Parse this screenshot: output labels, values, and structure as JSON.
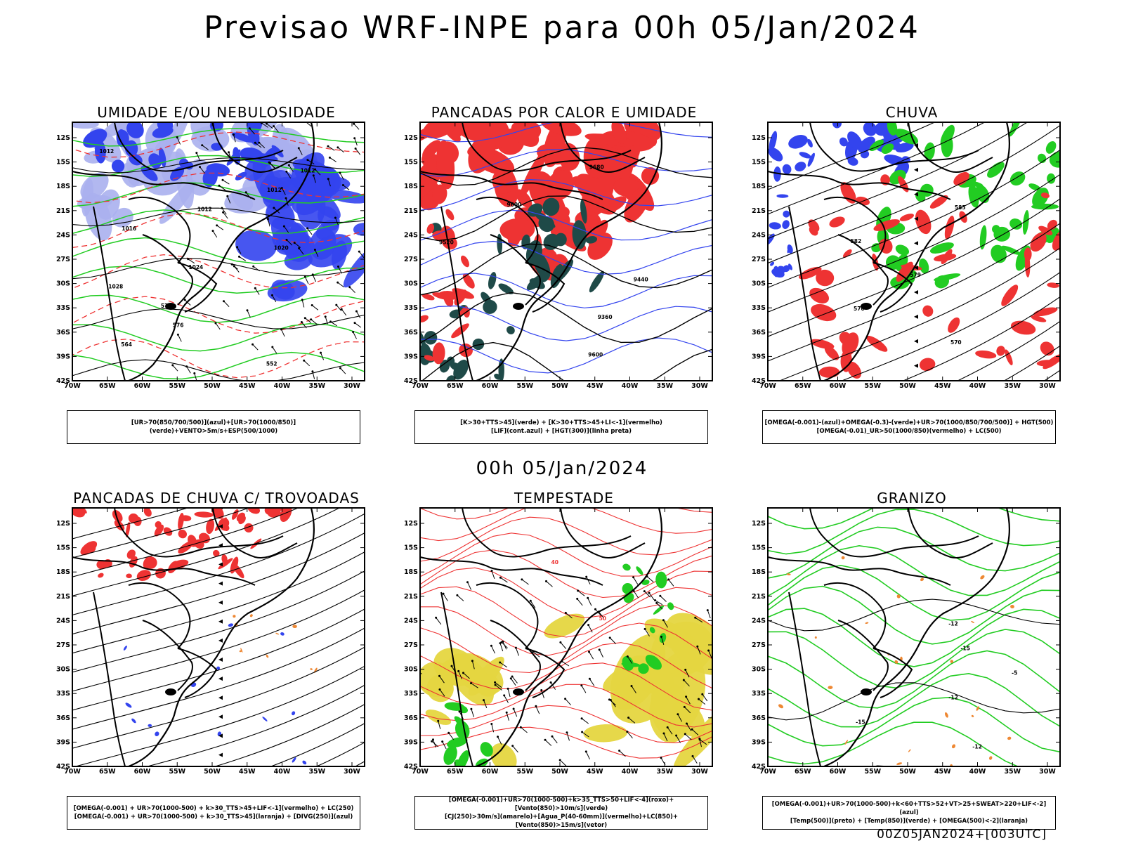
{
  "header": {
    "title": "Previsao WRF-INPE  para 00h 05/Jan/2024"
  },
  "mid_time": "00h 05/Jan/2024",
  "footer_stamp": "00Z05JAN2024+[003UTC]",
  "axes": {
    "lat_labels": [
      "12S",
      "15S",
      "18S",
      "21S",
      "24S",
      "27S",
      "30S",
      "33S",
      "36S",
      "39S",
      "42S"
    ],
    "lon_labels": [
      "70W",
      "65W",
      "60W",
      "55W",
      "50W",
      "45W",
      "40W",
      "35W",
      "30W"
    ]
  },
  "colors": {
    "blue": "#3344ee",
    "light_blue": "#aab0ee",
    "green": "#22cc22",
    "red": "#ee3333",
    "dark_teal": "#1f4a48",
    "yellow": "#e5d640",
    "orange": "#ee8833"
  },
  "panels": [
    {
      "title": "UMIDADE E/OU NEBULOSIDADE",
      "legend": [
        "[UR>70(850/700/500)](azul)+[UR>70(1000/850)](verde)+VENTO>5m/s+ESP(500/1000)"
      ],
      "labels": [
        "1012",
        "1012",
        "1012",
        "1012",
        "1016",
        "1020",
        "1024",
        "1028",
        "576",
        "576",
        "564",
        "552"
      ]
    },
    {
      "title": "PANCADAS POR CALOR E UMIDADE",
      "legend": [
        "[K>30+TTS>45](verde)  +  [K>30+TTS>45+LI<-1](vermelho)",
        "[LIF](cont.azul)  +  [HGT(300)](linha preta)"
      ],
      "labels": [
        "9680",
        "9600",
        "9520",
        "9440",
        "9360",
        "9600"
      ]
    },
    {
      "title": "CHUVA",
      "legend": [
        "[OMEGA(-0.001)-(azul)+OMEGA(-0.3)-(verde)+UR>70(1000/850/700/500)]  +  HGT(500)",
        "[OMEGA(-0.01)_UR>50(1000/850)(vermelho)  +  LC(500)"
      ],
      "labels": [
        "585",
        "582",
        "579",
        "576",
        "570"
      ]
    },
    {
      "title": "PANCADAS DE CHUVA C/ TROVOADAS",
      "legend": [
        "[OMEGA(-0.001)  +  UR>70(1000-500)  +  k>30_TTS>45+LIF<-1](vermelho)  +  LC(250)",
        "[OMEGA(-0.001)  +  UR>70(1000-500)  +  k>30_TTS>45](laranja)  +  [DIVG(250)](azul)"
      ],
      "labels": []
    },
    {
      "title": "TEMPESTADE",
      "legend": [
        "[OMEGA(-0.001)+UR>70(1000-500)+k>35_TTS>50+LIF<-4](roxo)+[Vento(850)>10m/s](verde)",
        "[CJ(250)>30m/s](amarelo)+[Agua_P(40-60mm)](vermelho)+LC(850)+[Vento(850)>15m/s](vetor)"
      ],
      "labels": [
        "40",
        "50"
      ]
    },
    {
      "title": "GRANIZO",
      "legend": [
        "[OMEGA(-0.001)+UR>70(1000-500)+k<60+TTS>52+VT>25+SWEAT>220+LIF<-2](azul)",
        "[Temp(500)](preto)  +  [Temp(850)](verde)  +  [OMEGA(500)<-2](laranja)"
      ],
      "labels": [
        "-12",
        "-15",
        "-5",
        "-12",
        "-15",
        "-12"
      ]
    }
  ]
}
